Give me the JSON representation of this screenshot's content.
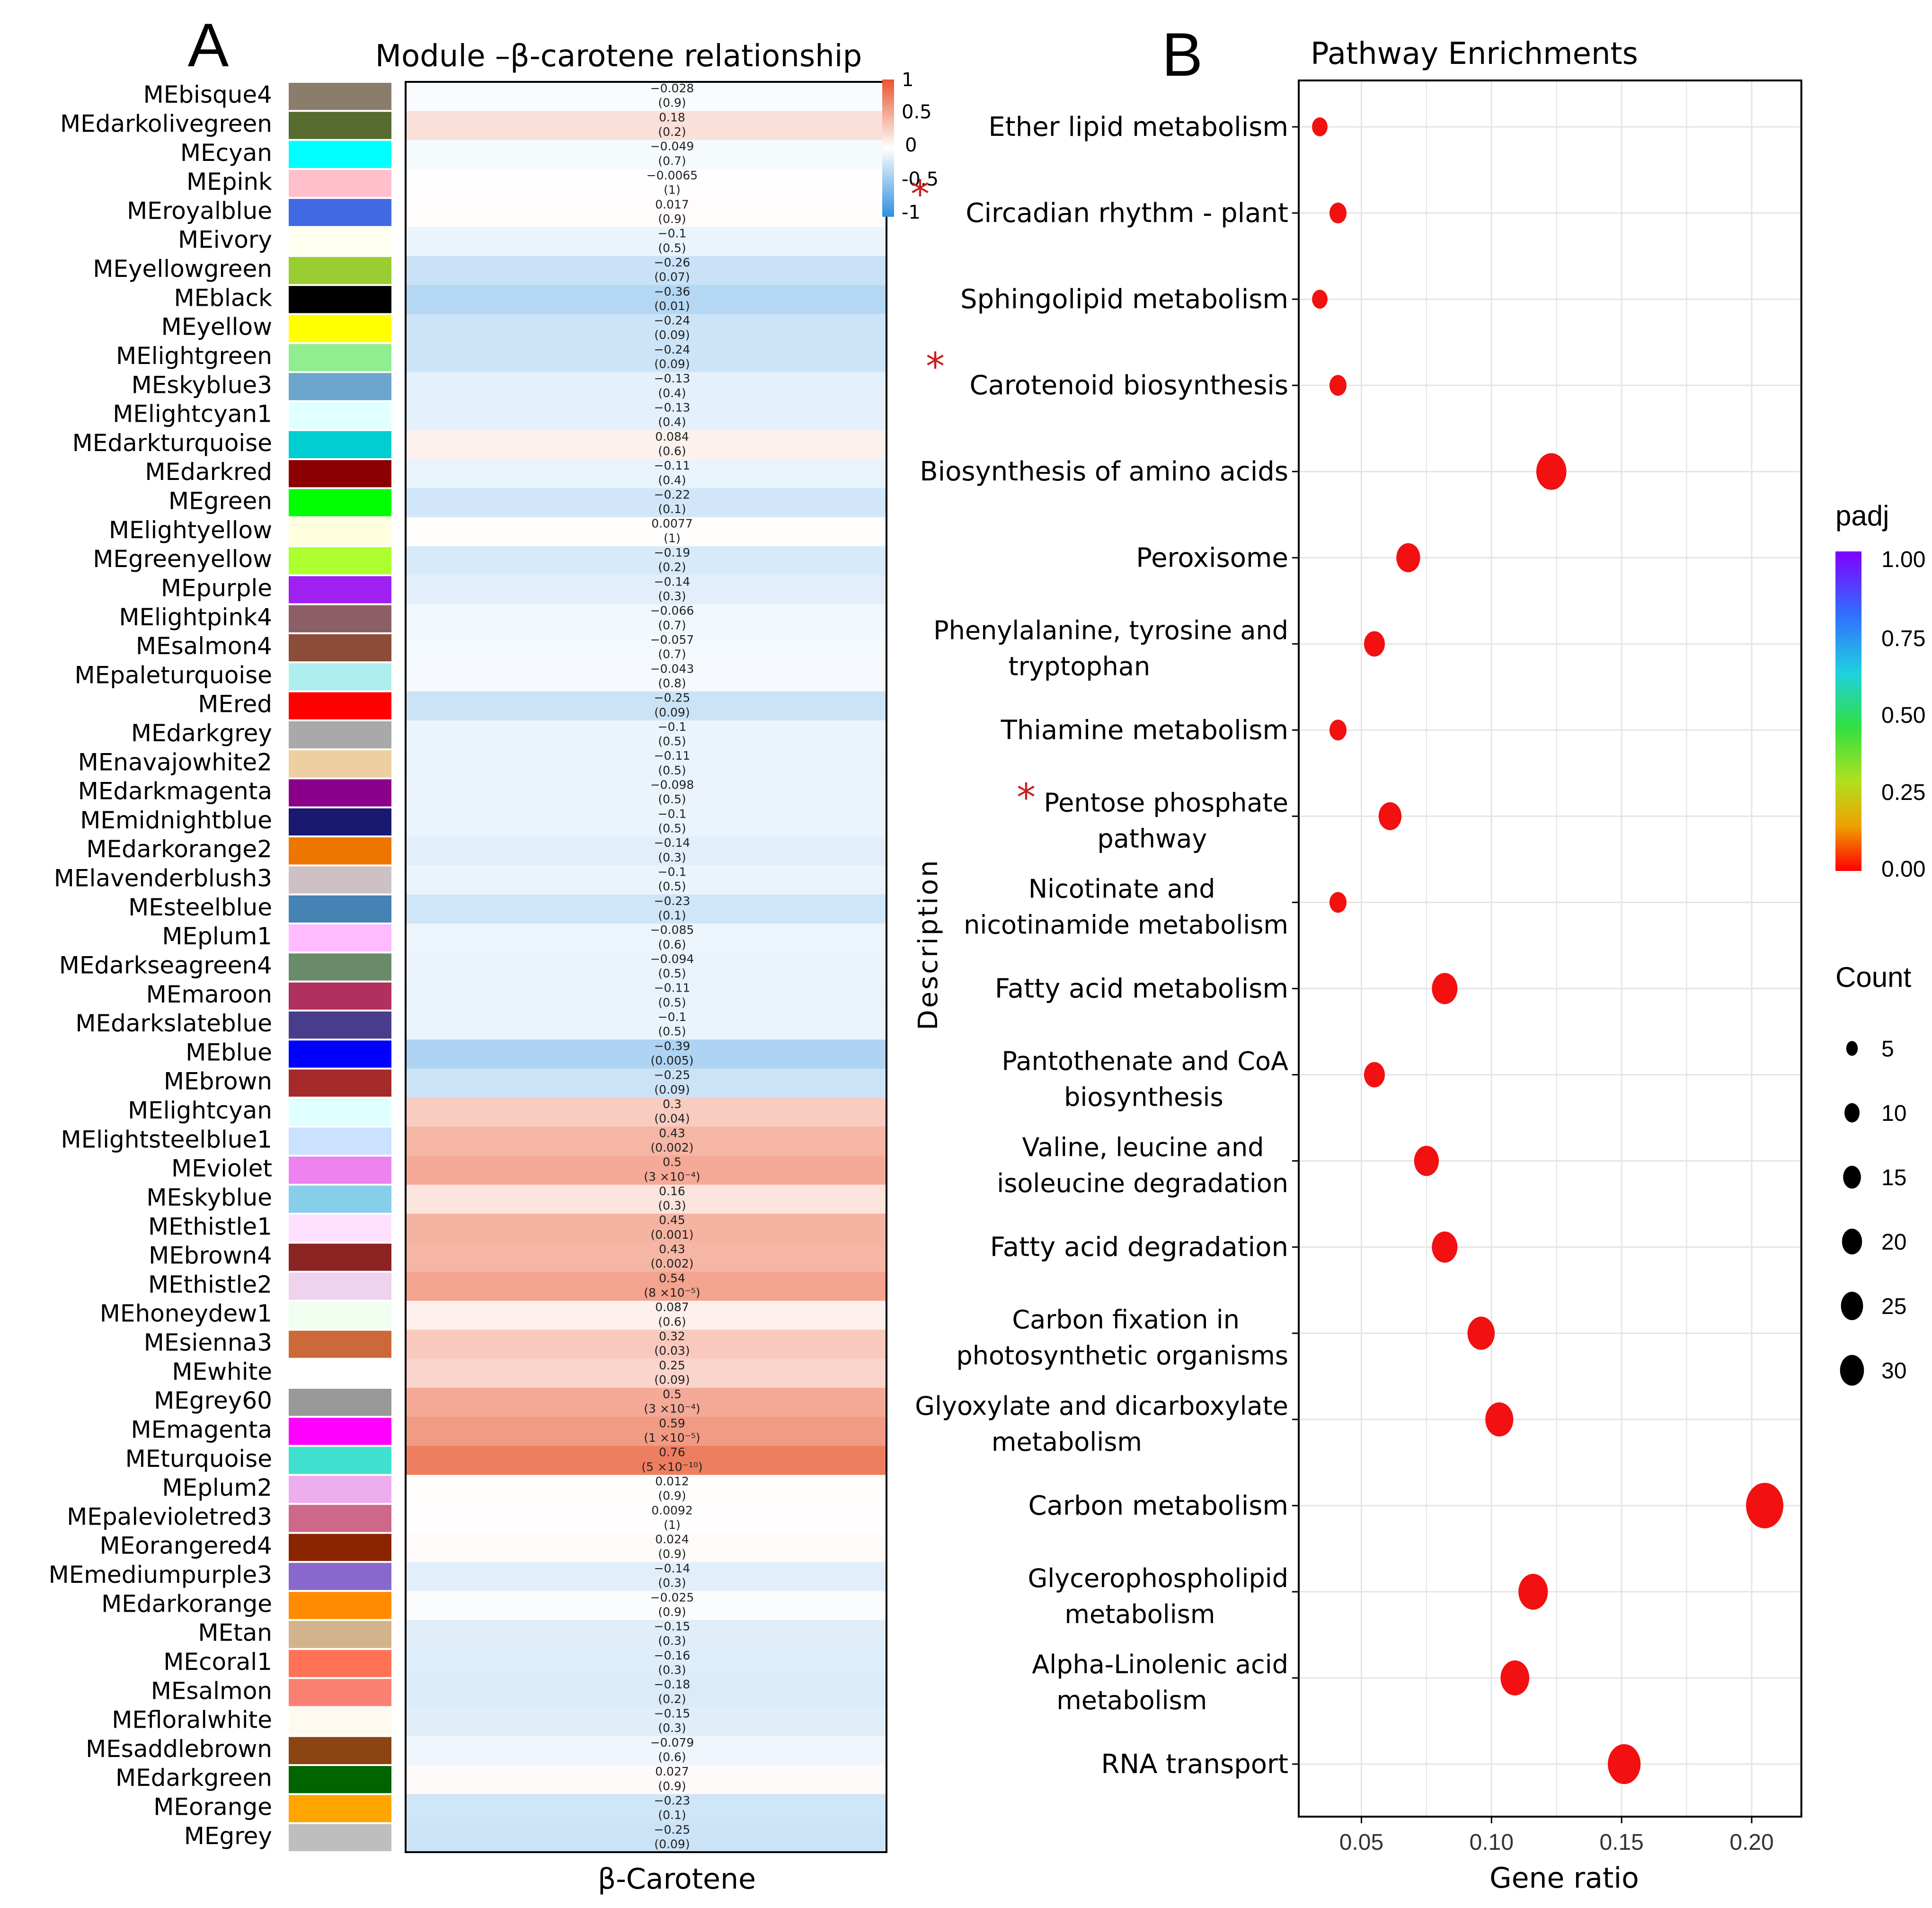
{
  "panel_a": {
    "letter": "A",
    "title": "Module –β-carotene relationship",
    "xlabel": "β-Carotene",
    "legend_ticks": [
      "1",
      "0.5",
      "0",
      "-0.5",
      "-1"
    ]
  },
  "panel_b": {
    "letter": "B",
    "title": "Pathway Enrichments",
    "ylabel": "Description",
    "xlabel": "Gene ratio",
    "x_ticks": [
      "0.05",
      "0.10",
      "0.15",
      "0.20"
    ],
    "padj_title": "padj",
    "padj_ticks": [
      "1.00",
      "0.75",
      "0.50",
      "0.25",
      "0.00"
    ],
    "count_title": "Count",
    "count_ticks": [
      "5",
      "10",
      "15",
      "20",
      "25",
      "30"
    ],
    "star_symbol": "*"
  },
  "chart_data": [
    {
      "type": "heatmap",
      "title": "Module –β-carotene relationship",
      "xlabel": "β-Carotene",
      "color_range": [
        -1,
        1
      ],
      "modules": [
        {
          "name": "MEbisque4",
          "color": "#8B7D6B",
          "r": "−0.028",
          "p": "(0.9)",
          "v": -0.028
        },
        {
          "name": "MEdarkolivegreen",
          "color": "#556B2F",
          "r": "0.18",
          "p": "(0.2)",
          "v": 0.18
        },
        {
          "name": "MEcyan",
          "color": "#00FFFF",
          "r": "−0.049",
          "p": "(0.7)",
          "v": -0.049
        },
        {
          "name": "MEpink",
          "color": "#FFC0CB",
          "r": "−0.0065",
          "p": "(1)",
          "v": -0.0065
        },
        {
          "name": "MEroyalblue",
          "color": "#4169E1",
          "r": "0.017",
          "p": "(0.9)",
          "v": 0.017
        },
        {
          "name": "MEivory",
          "color": "#FFFFF0",
          "r": "−0.1",
          "p": "(0.5)",
          "v": -0.1
        },
        {
          "name": "MEyellowgreen",
          "color": "#9ACD32",
          "r": "−0.26",
          "p": "(0.07)",
          "v": -0.26
        },
        {
          "name": "MEblack",
          "color": "#000000",
          "r": "−0.36",
          "p": "(0.01)",
          "v": -0.36
        },
        {
          "name": "MEyellow",
          "color": "#FFFF00",
          "r": "−0.24",
          "p": "(0.09)",
          "v": -0.24
        },
        {
          "name": "MElightgreen",
          "color": "#90EE90",
          "r": "−0.24",
          "p": "(0.09)",
          "v": -0.24
        },
        {
          "name": "MEskyblue3",
          "color": "#6CA6CD",
          "r": "−0.13",
          "p": "(0.4)",
          "v": -0.13
        },
        {
          "name": "MElightcyan1",
          "color": "#E0FFFF",
          "r": "−0.13",
          "p": "(0.4)",
          "v": -0.13
        },
        {
          "name": "MEdarkturquoise",
          "color": "#00CED1",
          "r": "0.084",
          "p": "(0.6)",
          "v": 0.084
        },
        {
          "name": "MEdarkred",
          "color": "#8B0000",
          "r": "−0.11",
          "p": "(0.4)",
          "v": -0.11
        },
        {
          "name": "MEgreen",
          "color": "#00FF00",
          "r": "−0.22",
          "p": "(0.1)",
          "v": -0.22
        },
        {
          "name": "MElightyellow",
          "color": "#FFFFE0",
          "r": "0.0077",
          "p": "(1)",
          "v": 0.0077
        },
        {
          "name": "MEgreenyellow",
          "color": "#ADFF2F",
          "r": "−0.19",
          "p": "(0.2)",
          "v": -0.19
        },
        {
          "name": "MEpurple",
          "color": "#A020F0",
          "r": "−0.14",
          "p": "(0.3)",
          "v": -0.14
        },
        {
          "name": "MElightpink4",
          "color": "#8B5F65",
          "r": "−0.066",
          "p": "(0.7)",
          "v": -0.066
        },
        {
          "name": "MEsalmon4",
          "color": "#8B4C39",
          "r": "−0.057",
          "p": "(0.7)",
          "v": -0.057
        },
        {
          "name": "MEpaleturquoise",
          "color": "#AFEEEE",
          "r": "−0.043",
          "p": "(0.8)",
          "v": -0.043
        },
        {
          "name": "MEred",
          "color": "#FF0000",
          "r": "−0.25",
          "p": "(0.09)",
          "v": -0.25
        },
        {
          "name": "MEdarkgrey",
          "color": "#A9A9A9",
          "r": "−0.1",
          "p": "(0.5)",
          "v": -0.1
        },
        {
          "name": "MEnavajowhite2",
          "color": "#EECFA1",
          "r": "−0.11",
          "p": "(0.5)",
          "v": -0.11
        },
        {
          "name": "MEdarkmagenta",
          "color": "#8B008B",
          "r": "−0.098",
          "p": "(0.5)",
          "v": -0.098
        },
        {
          "name": "MEmidnightblue",
          "color": "#191970",
          "r": "−0.1",
          "p": "(0.5)",
          "v": -0.1
        },
        {
          "name": "MEdarkorange2",
          "color": "#EE7600",
          "r": "−0.14",
          "p": "(0.3)",
          "v": -0.14
        },
        {
          "name": "MElavenderblush3",
          "color": "#CDC1C5",
          "r": "−0.1",
          "p": "(0.5)",
          "v": -0.1
        },
        {
          "name": "MEsteelblue",
          "color": "#4682B4",
          "r": "−0.23",
          "p": "(0.1)",
          "v": -0.23
        },
        {
          "name": "MEplum1",
          "color": "#FFBBFF",
          "r": "−0.085",
          "p": "(0.6)",
          "v": -0.085
        },
        {
          "name": "MEdarkseagreen4",
          "color": "#698B69",
          "r": "−0.094",
          "p": "(0.5)",
          "v": -0.094
        },
        {
          "name": "MEmaroon",
          "color": "#B03060",
          "r": "−0.11",
          "p": "(0.5)",
          "v": -0.11
        },
        {
          "name": "MEdarkslateblue",
          "color": "#483D8B",
          "r": "−0.1",
          "p": "(0.5)",
          "v": -0.1
        },
        {
          "name": "MEblue",
          "color": "#0000FF",
          "r": "−0.39",
          "p": "(0.005)",
          "v": -0.39
        },
        {
          "name": "MEbrown",
          "color": "#A52A2A",
          "r": "−0.25",
          "p": "(0.09)",
          "v": -0.25
        },
        {
          "name": "MElightcyan",
          "color": "#E0FFFF",
          "r": "0.3",
          "p": "(0.04)",
          "v": 0.3
        },
        {
          "name": "MElightsteelblue1",
          "color": "#CAE1FF",
          "r": "0.43",
          "p": "(0.002)",
          "v": 0.43
        },
        {
          "name": "MEviolet",
          "color": "#EE82EE",
          "r": "0.5",
          "p": "(3 ×10⁻⁴)",
          "v": 0.5
        },
        {
          "name": "MEskyblue",
          "color": "#87CEEB",
          "r": "0.16",
          "p": "(0.3)",
          "v": 0.16
        },
        {
          "name": "MEthistle1",
          "color": "#FFE1FF",
          "r": "0.45",
          "p": "(0.001)",
          "v": 0.45
        },
        {
          "name": "MEbrown4",
          "color": "#8B2323",
          "r": "0.43",
          "p": "(0.002)",
          "v": 0.43
        },
        {
          "name": "MEthistle2",
          "color": "#EED2EE",
          "r": "0.54",
          "p": "(8 ×10⁻⁵)",
          "v": 0.54
        },
        {
          "name": "MEhoneydew1",
          "color": "#F0FFF0",
          "r": "0.087",
          "p": "(0.6)",
          "v": 0.087
        },
        {
          "name": "MEsienna3",
          "color": "#CD6839",
          "r": "0.32",
          "p": "(0.03)",
          "v": 0.32
        },
        {
          "name": "MEwhite",
          "color": "#FFFFFF",
          "r": "0.25",
          "p": "(0.09)",
          "v": 0.25
        },
        {
          "name": "MEgrey60",
          "color": "#999999",
          "r": "0.5",
          "p": "(3 ×10⁻⁴)",
          "v": 0.5
        },
        {
          "name": "MEmagenta",
          "color": "#FF00FF",
          "r": "0.59",
          "p": "(1 ×10⁻⁵)",
          "v": 0.59
        },
        {
          "name": "MEturquoise",
          "color": "#40E0D0",
          "r": "0.76",
          "p": "(5 ×10⁻¹⁰)",
          "v": 0.76
        },
        {
          "name": "MEplum2",
          "color": "#EEAEEE",
          "r": "0.012",
          "p": "(0.9)",
          "v": 0.012
        },
        {
          "name": "MEpalevioletred3",
          "color": "#CD6889",
          "r": "0.0092",
          "p": "(1)",
          "v": 0.0092
        },
        {
          "name": "MEorangered4",
          "color": "#8B2500",
          "r": "0.024",
          "p": "(0.9)",
          "v": 0.024
        },
        {
          "name": "MEmediumpurple3",
          "color": "#8968CD",
          "r": "−0.14",
          "p": "(0.3)",
          "v": -0.14
        },
        {
          "name": "MEdarkorange",
          "color": "#FF8C00",
          "r": "−0.025",
          "p": "(0.9)",
          "v": -0.025
        },
        {
          "name": "MEtan",
          "color": "#D2B48C",
          "r": "−0.15",
          "p": "(0.3)",
          "v": -0.15
        },
        {
          "name": "MEcoral1",
          "color": "#FF7256",
          "r": "−0.16",
          "p": "(0.3)",
          "v": -0.16
        },
        {
          "name": "MEsalmon",
          "color": "#FA8072",
          "r": "−0.18",
          "p": "(0.2)",
          "v": -0.18
        },
        {
          "name": "MEfloralwhite",
          "color": "#FFFAF0",
          "r": "−0.15",
          "p": "(0.3)",
          "v": -0.15
        },
        {
          "name": "MEsaddlebrown",
          "color": "#8B4513",
          "r": "−0.079",
          "p": "(0.6)",
          "v": -0.079
        },
        {
          "name": "MEdarkgreen",
          "color": "#006400",
          "r": "0.027",
          "p": "(0.9)",
          "v": 0.027
        },
        {
          "name": "MEorange",
          "color": "#FFA500",
          "r": "−0.23",
          "p": "(0.1)",
          "v": -0.23
        },
        {
          "name": "MEgrey",
          "color": "#BEBEBE",
          "r": "−0.25",
          "p": "(0.09)",
          "v": -0.25
        }
      ]
    },
    {
      "type": "scatter",
      "title": "Pathway Enrichments",
      "xlabel": "Gene ratio",
      "ylabel": "Description",
      "xlim": [
        0.035,
        0.21
      ],
      "x_ticks": [
        0.05,
        0.1,
        0.15,
        0.2
      ],
      "size_legend": "Count",
      "color_legend": "padj",
      "points": [
        {
          "lines": [
            "Ether lipid metabolism"
          ],
          "x": 0.034,
          "count": 3,
          "star": false
        },
        {
          "lines": [
            "Circadian rhythm - plant"
          ],
          "x": 0.041,
          "count": 4,
          "star": true
        },
        {
          "lines": [
            "Sphingolipid metabolism"
          ],
          "x": 0.034,
          "count": 3,
          "star": false
        },
        {
          "lines": [
            "Carotenoid biosynthesis"
          ],
          "x": 0.041,
          "count": 4,
          "star": true
        },
        {
          "lines": [
            "Biosynthesis of amino acids"
          ],
          "x": 0.123,
          "count": 18,
          "star": false
        },
        {
          "lines": [
            "Peroxisome"
          ],
          "x": 0.068,
          "count": 10,
          "star": false
        },
        {
          "lines": [
            "Phenylalanine, tyrosine and",
            "tryptophan"
          ],
          "x": 0.055,
          "count": 7,
          "star": false
        },
        {
          "lines": [
            "Thiamine metabolism"
          ],
          "x": 0.041,
          "count": 4,
          "star": false
        },
        {
          "lines": [
            "Pentose phosphate",
            "pathway"
          ],
          "x": 0.061,
          "count": 9,
          "star": true
        },
        {
          "lines": [
            "Nicotinate and",
            "nicotinamide metabolism"
          ],
          "x": 0.041,
          "count": 4,
          "star": false
        },
        {
          "lines": [
            "Fatty acid metabolism"
          ],
          "x": 0.082,
          "count": 12,
          "star": false
        },
        {
          "lines": [
            "Pantothenate and CoA",
            "biosynthesis"
          ],
          "x": 0.055,
          "count": 7,
          "star": false
        },
        {
          "lines": [
            "Valine, leucine and",
            "isoleucine degradation"
          ],
          "x": 0.075,
          "count": 11,
          "star": false
        },
        {
          "lines": [
            "Fatty acid degradation"
          ],
          "x": 0.082,
          "count": 12,
          "star": false
        },
        {
          "lines": [
            "Carbon fixation in",
            "photosynthetic organisms"
          ],
          "x": 0.096,
          "count": 14,
          "star": false
        },
        {
          "lines": [
            "Glyoxylate and dicarboxylate",
            "metabolism"
          ],
          "x": 0.103,
          "count": 15,
          "star": false
        },
        {
          "lines": [
            "Carbon metabolism"
          ],
          "x": 0.205,
          "count": 30,
          "star": false
        },
        {
          "lines": [
            "Glycerophospholipid",
            "metabolism"
          ],
          "x": 0.116,
          "count": 17,
          "star": false
        },
        {
          "lines": [
            "Alpha-Linolenic acid",
            "metabolism"
          ],
          "x": 0.109,
          "count": 16,
          "star": false
        },
        {
          "lines": [
            "RNA transport"
          ],
          "x": 0.151,
          "count": 22,
          "star": false
        }
      ]
    }
  ]
}
